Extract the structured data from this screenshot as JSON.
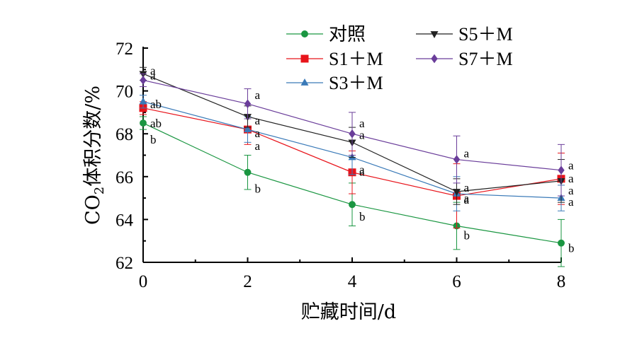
{
  "chart_data": {
    "type": "line",
    "xlabel": "贮藏时间/d",
    "ylabel_main": "CO",
    "ylabel_sub": "2",
    "ylabel_rest": "体积分数/%",
    "x": [
      0,
      2,
      4,
      6,
      8
    ],
    "xlim": [
      0,
      8
    ],
    "ylim": [
      62,
      72
    ],
    "xticks": [
      "0",
      "2",
      "4",
      "6",
      "8"
    ],
    "yticks": [
      "62",
      "64",
      "66",
      "68",
      "70",
      "72"
    ],
    "series": [
      {
        "name": "对照",
        "color": "#1a9641",
        "marker": "circle",
        "values": [
          68.5,
          66.2,
          64.7,
          63.7,
          62.9
        ],
        "errors": [
          0.3,
          0.8,
          1.0,
          1.1,
          1.1
        ],
        "labels": [
          "b",
          "b",
          "b",
          "b",
          "b"
        ]
      },
      {
        "name": "S1＋M",
        "color": "#e8141b",
        "marker": "square",
        "values": [
          69.2,
          68.2,
          66.2,
          65.1,
          65.9
        ],
        "errors": [
          0.3,
          0.7,
          1.0,
          1.5,
          1.2
        ],
        "labels": [
          "ab",
          "a",
          "a",
          "a",
          "a"
        ]
      },
      {
        "name": "S3＋M",
        "color": "#3a7ab8",
        "marker": "triangle-up",
        "values": [
          69.5,
          68.2,
          66.9,
          65.2,
          65.0
        ],
        "errors": [
          0.3,
          0.6,
          0.8,
          0.8,
          0.6
        ],
        "labels": [
          "ab",
          "a",
          "a",
          "a",
          "a"
        ]
      },
      {
        "name": "S5＋M",
        "color": "#222222",
        "marker": "triangle-down",
        "values": [
          70.8,
          68.8,
          67.6,
          65.3,
          65.8
        ],
        "errors": [
          0.3,
          0.5,
          0.7,
          0.6,
          1.0
        ],
        "labels": [
          "a",
          "a",
          "a",
          "a",
          "a"
        ]
      },
      {
        "name": "S7＋M",
        "color": "#6a3d9a",
        "marker": "diamond",
        "values": [
          70.5,
          69.4,
          68.0,
          66.8,
          66.3
        ],
        "errors": [
          0.3,
          0.7,
          1.0,
          1.1,
          1.2
        ],
        "labels": [
          "a",
          "a",
          "a",
          "a",
          "a"
        ]
      }
    ],
    "legend": {
      "placement": "top-right",
      "columns": [
        [
          "对照",
          "S1＋M",
          "S3＋M"
        ],
        [
          "S5＋M",
          "S7＋M"
        ]
      ]
    }
  }
}
